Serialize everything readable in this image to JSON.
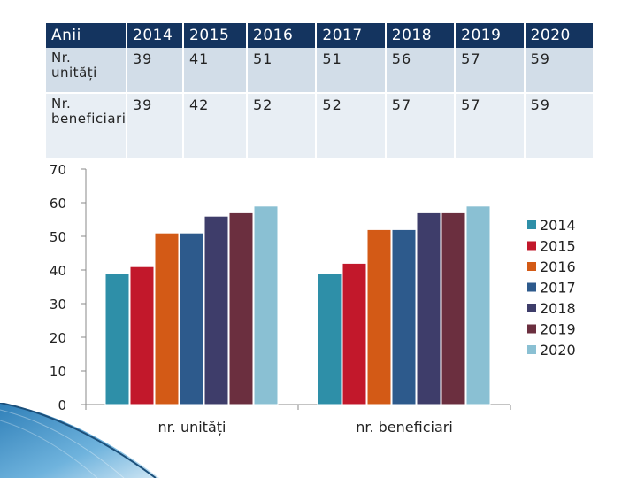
{
  "table": {
    "headers": [
      "Anii",
      "2014",
      "2015",
      "2016",
      "2017",
      "2018",
      "2019",
      "2020"
    ],
    "rows": [
      [
        "Nr. unități",
        "39",
        "41",
        "51",
        "51",
        "56",
        "57",
        "59"
      ],
      [
        "Nr. beneficiari",
        "39",
        "42",
        "52",
        "52",
        "57",
        "57",
        "59"
      ]
    ]
  },
  "chart_data": {
    "type": "bar",
    "categories": [
      "nr. unități",
      "nr. beneficiari"
    ],
    "series": [
      {
        "name": "2014",
        "values": [
          39,
          39
        ],
        "color": "#2e8fa8"
      },
      {
        "name": "2015",
        "values": [
          41,
          42
        ],
        "color": "#c2182b"
      },
      {
        "name": "2016",
        "values": [
          51,
          52
        ],
        "color": "#d35a16"
      },
      {
        "name": "2017",
        "values": [
          51,
          52
        ],
        "color": "#2d5a8c"
      },
      {
        "name": "2018",
        "values": [
          56,
          57
        ],
        "color": "#3e3d6a"
      },
      {
        "name": "2019",
        "values": [
          57,
          57
        ],
        "color": "#6b2f3f"
      },
      {
        "name": "2020",
        "values": [
          59,
          59
        ],
        "color": "#8ac0d3"
      }
    ],
    "ylim": [
      0,
      70
    ],
    "yticks": [
      "0",
      "10",
      "20",
      "30",
      "40",
      "50",
      "60",
      "70"
    ],
    "legend_position": "right",
    "grid": false
  }
}
